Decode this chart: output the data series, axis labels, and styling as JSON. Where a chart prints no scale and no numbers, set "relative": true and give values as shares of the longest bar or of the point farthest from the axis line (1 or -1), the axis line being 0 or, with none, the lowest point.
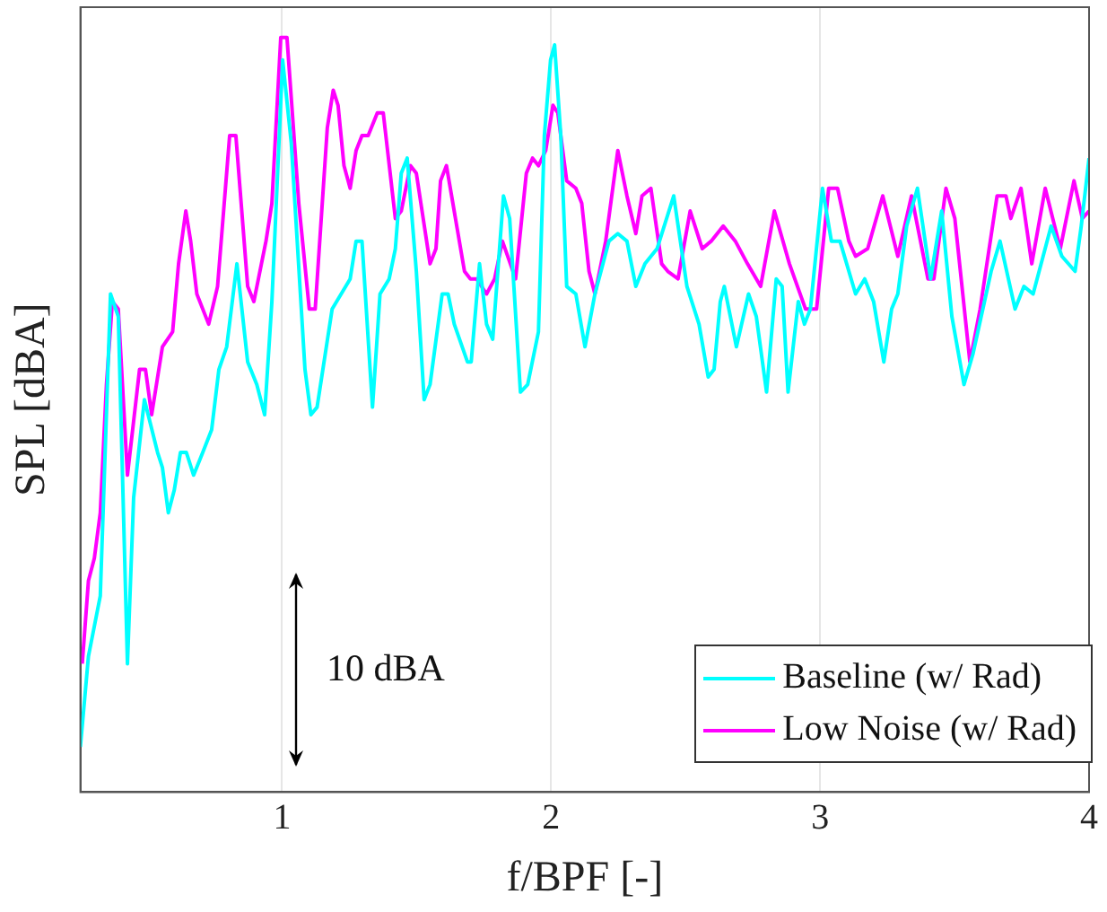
{
  "chart_data": {
    "type": "line",
    "xlabel": "f/BPF [-]",
    "ylabel": "SPL [dBA]",
    "relative": true,
    "xlim": [
      0.25,
      4
    ],
    "xticks": [
      1,
      2,
      3,
      4
    ],
    "grid": "x",
    "legend": "bottom right",
    "line_style": "solid",
    "marker": "none",
    "annotations": [
      "10 dBA"
    ],
    "series": [
      {
        "name": "Baseline (w/ Rad)",
        "color": "#00ffff",
        "x": [
          0.25,
          0.28,
          0.324,
          0.362,
          0.391,
          0.425,
          0.448,
          0.488,
          0.537,
          0.555,
          0.577,
          0.599,
          0.622,
          0.644,
          0.671,
          0.705,
          0.738,
          0.765,
          0.794,
          0.832,
          0.872,
          0.906,
          0.935,
          0.962,
          1.002,
          1.034,
          1.085,
          1.107,
          1.13,
          1.186,
          1.253,
          1.275,
          1.297,
          1.336,
          1.364,
          1.398,
          1.421,
          1.443,
          1.465,
          1.499,
          1.528,
          1.55,
          1.595,
          1.617,
          1.64,
          1.689,
          1.703,
          1.734,
          1.76,
          1.783,
          1.823,
          1.846,
          1.886,
          1.913,
          1.953,
          1.975,
          1.998,
          2.013,
          2.036,
          2.058,
          2.092,
          2.126,
          2.163,
          2.215,
          2.248,
          2.282,
          2.315,
          2.349,
          2.394,
          2.456,
          2.505,
          2.55,
          2.584,
          2.606,
          2.629,
          2.644,
          2.689,
          2.734,
          2.763,
          2.801,
          2.837,
          2.859,
          2.881,
          2.919,
          2.942,
          2.964,
          3.009,
          3.042,
          3.074,
          3.132,
          3.166,
          3.199,
          3.237,
          3.266,
          3.289,
          3.322,
          3.362,
          3.411,
          3.452,
          3.49,
          3.535,
          3.568,
          3.636,
          3.669,
          3.725,
          3.758,
          3.792,
          3.859,
          3.899,
          3.948,
          3.971,
          4.0
        ],
        "values": [
          0.06,
          0.18,
          0.26,
          0.66,
          0.63,
          0.17,
          0.39,
          0.52,
          0.45,
          0.43,
          0.37,
          0.4,
          0.45,
          0.45,
          0.42,
          0.45,
          0.48,
          0.56,
          0.59,
          0.7,
          0.57,
          0.54,
          0.5,
          0.65,
          0.97,
          0.86,
          0.56,
          0.5,
          0.51,
          0.64,
          0.68,
          0.73,
          0.73,
          0.51,
          0.66,
          0.68,
          0.72,
          0.82,
          0.84,
          0.69,
          0.52,
          0.54,
          0.66,
          0.66,
          0.62,
          0.57,
          0.57,
          0.7,
          0.62,
          0.6,
          0.79,
          0.76,
          0.53,
          0.54,
          0.61,
          0.87,
          0.97,
          0.99,
          0.87,
          0.67,
          0.66,
          0.59,
          0.66,
          0.73,
          0.74,
          0.73,
          0.67,
          0.7,
          0.72,
          0.79,
          0.67,
          0.62,
          0.55,
          0.56,
          0.65,
          0.67,
          0.59,
          0.66,
          0.63,
          0.53,
          0.68,
          0.67,
          0.53,
          0.65,
          0.62,
          0.64,
          0.8,
          0.73,
          0.73,
          0.66,
          0.68,
          0.65,
          0.57,
          0.64,
          0.66,
          0.75,
          0.8,
          0.68,
          0.77,
          0.63,
          0.54,
          0.58,
          0.69,
          0.73,
          0.64,
          0.67,
          0.66,
          0.75,
          0.71,
          0.69,
          0.75,
          0.84
        ]
      },
      {
        "name": "Low Noise (w/ Rad)",
        "color": "#ff00ff",
        "x": [
          0.257,
          0.28,
          0.302,
          0.324,
          0.347,
          0.369,
          0.391,
          0.425,
          0.47,
          0.492,
          0.515,
          0.555,
          0.593,
          0.615,
          0.642,
          0.66,
          0.683,
          0.727,
          0.76,
          0.805,
          0.828,
          0.872,
          0.895,
          0.94,
          0.962,
          0.995,
          1.018,
          1.062,
          1.101,
          1.123,
          1.168,
          1.19,
          1.208,
          1.23,
          1.253,
          1.275,
          1.297,
          1.32,
          1.354,
          1.376,
          1.421,
          1.443,
          1.477,
          1.499,
          1.55,
          1.572,
          1.589,
          1.611,
          1.678,
          1.7,
          1.723,
          1.76,
          1.79,
          1.819,
          1.868,
          1.908,
          1.931,
          1.953,
          1.98,
          2.007,
          2.025,
          2.058,
          2.092,
          2.114,
          2.141,
          2.163,
          2.203,
          2.248,
          2.282,
          2.315,
          2.338,
          2.371,
          2.411,
          2.434,
          2.472,
          2.517,
          2.562,
          2.595,
          2.64,
          2.685,
          2.73,
          2.779,
          2.83,
          2.886,
          2.946,
          2.987,
          3.032,
          3.065,
          3.107,
          3.132,
          3.177,
          3.233,
          3.289,
          3.34,
          3.401,
          3.423,
          3.468,
          3.501,
          3.557,
          3.595,
          3.658,
          3.691,
          3.709,
          3.747,
          3.787,
          3.837,
          3.893,
          3.944,
          3.975,
          4.0
        ],
        "values": [
          0.17,
          0.28,
          0.31,
          0.37,
          0.54,
          0.65,
          0.64,
          0.42,
          0.56,
          0.56,
          0.5,
          0.59,
          0.61,
          0.7,
          0.77,
          0.73,
          0.66,
          0.62,
          0.67,
          0.87,
          0.87,
          0.67,
          0.65,
          0.73,
          0.78,
          1.0,
          1.0,
          0.78,
          0.64,
          0.64,
          0.88,
          0.93,
          0.91,
          0.83,
          0.8,
          0.85,
          0.87,
          0.87,
          0.9,
          0.9,
          0.76,
          0.77,
          0.83,
          0.82,
          0.7,
          0.72,
          0.81,
          0.83,
          0.69,
          0.68,
          0.68,
          0.66,
          0.68,
          0.73,
          0.68,
          0.82,
          0.84,
          0.83,
          0.85,
          0.91,
          0.9,
          0.81,
          0.8,
          0.78,
          0.69,
          0.66,
          0.73,
          0.85,
          0.79,
          0.74,
          0.79,
          0.8,
          0.7,
          0.69,
          0.68,
          0.77,
          0.72,
          0.73,
          0.75,
          0.73,
          0.7,
          0.67,
          0.77,
          0.7,
          0.64,
          0.64,
          0.8,
          0.8,
          0.73,
          0.71,
          0.72,
          0.79,
          0.71,
          0.79,
          0.68,
          0.68,
          0.8,
          0.76,
          0.57,
          0.64,
          0.79,
          0.79,
          0.76,
          0.8,
          0.7,
          0.8,
          0.72,
          0.81,
          0.76,
          0.77
        ]
      }
    ]
  }
}
